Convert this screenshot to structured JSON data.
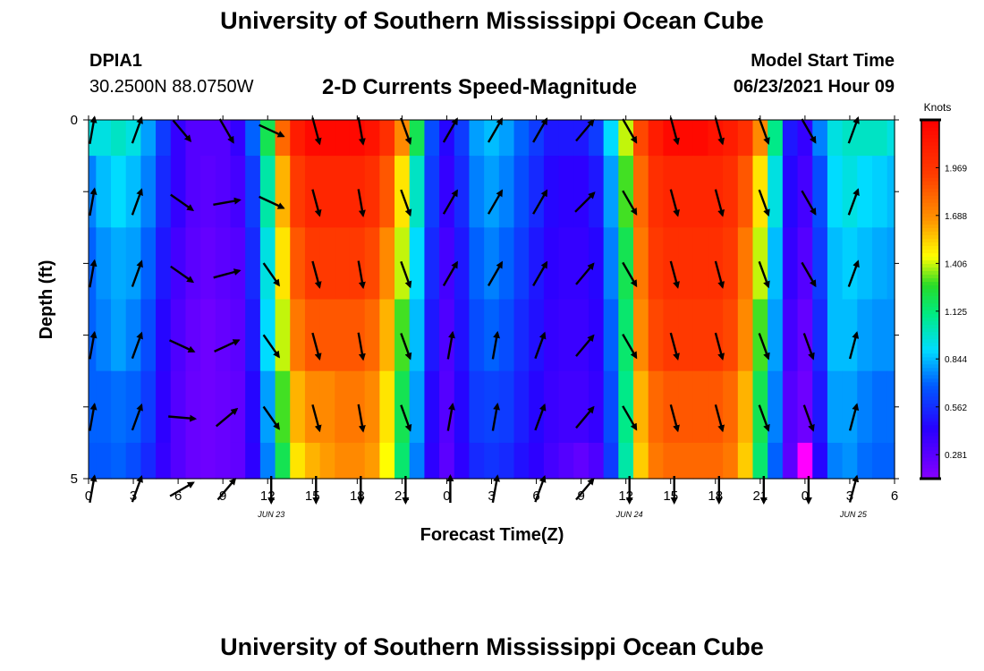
{
  "header": {
    "title": "University of Southern Mississippi Ocean Cube",
    "station_id": "DPIA1",
    "location": "30.2500N  88.0750W",
    "subtitle": "2-D Currents Speed-Magnitude",
    "model_label": "Model Start Time",
    "model_time": "06/23/2021 Hour 09"
  },
  "footer": {
    "title": "University of Southern Mississippi Ocean Cube"
  },
  "chart_data": {
    "type": "heatmap",
    "xlabel": "Forecast Time(Z)",
    "ylabel": "Depth (ft)",
    "x_tick_labels": [
      "0",
      "3",
      "6",
      "9",
      "12",
      "15",
      "18",
      "21",
      "0",
      "3",
      "6",
      "9",
      "12",
      "15",
      "18",
      "21",
      "0",
      "3",
      "6"
    ],
    "date_labels": [
      {
        "label": "JUN 23",
        "tick_index": 4
      },
      {
        "label": "JUN 24",
        "tick_index": 12
      },
      {
        "label": "JUN 25",
        "tick_index": 17
      }
    ],
    "y_tick_labels": [
      "0",
      "5"
    ],
    "ylim": [
      0,
      5
    ],
    "depth_levels": 5,
    "colorbar": {
      "unit": "Knots",
      "ticks": [
        "0.281",
        "0.562",
        "0.844",
        "1.125",
        "1.406",
        "1.688",
        "1.969"
      ],
      "min": 0.14,
      "max": 2.25
    },
    "time_hours": [
      0,
      1,
      2,
      3,
      4,
      5,
      6,
      7,
      8,
      9,
      10,
      11,
      12,
      13,
      14,
      15,
      16,
      17,
      18,
      19,
      20,
      21,
      22,
      23,
      24,
      25,
      26,
      27,
      28,
      29,
      30,
      31,
      32,
      33,
      34,
      35,
      36,
      37,
      38,
      39,
      40,
      41,
      42,
      43,
      44,
      45,
      46,
      47,
      48,
      49,
      50,
      51,
      52,
      53,
      54
    ],
    "speed_knots": [
      [
        0.95,
        0.95,
        1.0,
        0.95,
        0.8,
        0.6,
        0.4,
        0.3,
        0.3,
        0.3,
        0.4,
        0.7,
        1.2,
        1.8,
        2.1,
        2.2,
        2.2,
        2.2,
        2.2,
        2.15,
        2.0,
        1.7,
        1.2,
        0.65,
        0.45,
        0.6,
        0.8,
        0.85,
        0.8,
        0.7,
        0.6,
        0.5,
        0.5,
        0.5,
        0.6,
        0.9,
        1.4,
        1.9,
        2.1,
        2.2,
        2.2,
        2.2,
        2.15,
        2.1,
        2.0,
        1.7,
        1.1,
        0.5,
        0.4,
        0.75,
        0.95,
        1.0,
        1.0,
        1.0,
        0.95
      ],
      [
        0.75,
        0.85,
        0.9,
        0.85,
        0.75,
        0.55,
        0.4,
        0.3,
        0.28,
        0.3,
        0.35,
        0.6,
        1.05,
        1.6,
        1.95,
        2.05,
        2.05,
        2.05,
        2.05,
        2.0,
        1.85,
        1.5,
        1.0,
        0.6,
        0.4,
        0.55,
        0.75,
        0.8,
        0.75,
        0.65,
        0.55,
        0.45,
        0.42,
        0.42,
        0.5,
        0.8,
        1.3,
        1.8,
        2.0,
        2.05,
        2.05,
        2.05,
        2.05,
        2.0,
        1.85,
        1.5,
        0.95,
        0.45,
        0.35,
        0.65,
        0.9,
        0.95,
        0.9,
        0.88,
        0.85
      ],
      [
        0.7,
        0.78,
        0.82,
        0.8,
        0.7,
        0.5,
        0.35,
        0.28,
        0.25,
        0.28,
        0.3,
        0.55,
        0.95,
        1.5,
        1.85,
        1.95,
        1.95,
        1.95,
        1.95,
        1.9,
        1.7,
        1.4,
        0.9,
        0.55,
        0.35,
        0.5,
        0.7,
        0.75,
        0.7,
        0.6,
        0.5,
        0.42,
        0.4,
        0.4,
        0.45,
        0.75,
        1.2,
        1.75,
        1.95,
        2.0,
        2.0,
        2.0,
        2.0,
        1.95,
        1.75,
        1.4,
        0.85,
        0.4,
        0.3,
        0.6,
        0.85,
        0.88,
        0.85,
        0.82,
        0.8
      ],
      [
        0.7,
        0.75,
        0.8,
        0.75,
        0.65,
        0.45,
        0.32,
        0.25,
        0.22,
        0.25,
        0.28,
        0.5,
        0.9,
        1.4,
        1.75,
        1.85,
        1.85,
        1.85,
        1.85,
        1.8,
        1.6,
        1.3,
        0.85,
        0.5,
        0.32,
        0.48,
        0.65,
        0.7,
        0.65,
        0.55,
        0.48,
        0.4,
        0.38,
        0.38,
        0.42,
        0.7,
        1.15,
        1.7,
        1.9,
        1.95,
        1.95,
        1.95,
        1.95,
        1.9,
        1.7,
        1.3,
        0.8,
        0.35,
        0.25,
        0.55,
        0.85,
        0.85,
        0.8,
        0.78,
        0.78
      ],
      [
        0.7,
        0.7,
        0.72,
        0.7,
        0.6,
        0.42,
        0.3,
        0.24,
        0.22,
        0.24,
        0.26,
        0.45,
        0.8,
        1.3,
        1.6,
        1.7,
        1.7,
        1.75,
        1.75,
        1.7,
        1.5,
        1.2,
        0.8,
        0.45,
        0.3,
        0.45,
        0.6,
        0.62,
        0.6,
        0.52,
        0.45,
        0.38,
        0.36,
        0.36,
        0.4,
        0.65,
        1.1,
        1.6,
        1.8,
        1.85,
        1.85,
        1.85,
        1.85,
        1.8,
        1.6,
        1.2,
        0.75,
        0.3,
        0.22,
        0.5,
        0.8,
        0.8,
        0.75,
        0.72,
        0.72
      ],
      [
        0.68,
        0.68,
        0.7,
        0.65,
        0.55,
        0.4,
        0.3,
        0.24,
        0.22,
        0.24,
        0.26,
        0.42,
        0.75,
        1.2,
        1.5,
        1.6,
        1.65,
        1.7,
        1.7,
        1.65,
        1.45,
        1.15,
        0.75,
        0.42,
        0.28,
        0.42,
        0.55,
        0.58,
        0.55,
        0.48,
        0.42,
        0.35,
        0.3,
        0.26,
        0.32,
        0.6,
        1.05,
        1.55,
        1.75,
        1.8,
        1.8,
        1.8,
        1.8,
        1.75,
        1.55,
        1.15,
        0.7,
        0.28,
        0.05,
        0.45,
        0.75,
        0.78,
        0.72,
        0.7,
        0.7
      ]
    ],
    "vector_time_hours": [
      0,
      3,
      6,
      9,
      12,
      15,
      18,
      21,
      24,
      27,
      30,
      33,
      36,
      39,
      42,
      45,
      48,
      51
    ],
    "vector_direction_deg": [
      [
        10,
        20,
        140,
        150,
        115,
        165,
        170,
        160,
        30,
        30,
        30,
        40,
        150,
        165,
        165,
        160,
        150,
        20
      ],
      [
        10,
        20,
        125,
        80,
        115,
        165,
        170,
        160,
        30,
        30,
        30,
        45,
        150,
        165,
        165,
        160,
        150,
        20
      ],
      [
        10,
        20,
        125,
        75,
        145,
        165,
        170,
        160,
        30,
        30,
        30,
        40,
        150,
        165,
        165,
        160,
        150,
        20
      ],
      [
        10,
        20,
        115,
        65,
        145,
        165,
        170,
        160,
        10,
        10,
        20,
        40,
        150,
        165,
        165,
        160,
        160,
        15
      ],
      [
        10,
        20,
        95,
        50,
        145,
        165,
        170,
        160,
        10,
        10,
        20,
        40,
        150,
        165,
        165,
        160,
        160,
        15
      ],
      [
        10,
        20,
        60,
        40,
        180,
        180,
        180,
        180,
        0,
        10,
        20,
        40,
        180,
        180,
        180,
        180,
        180,
        15
      ]
    ]
  }
}
